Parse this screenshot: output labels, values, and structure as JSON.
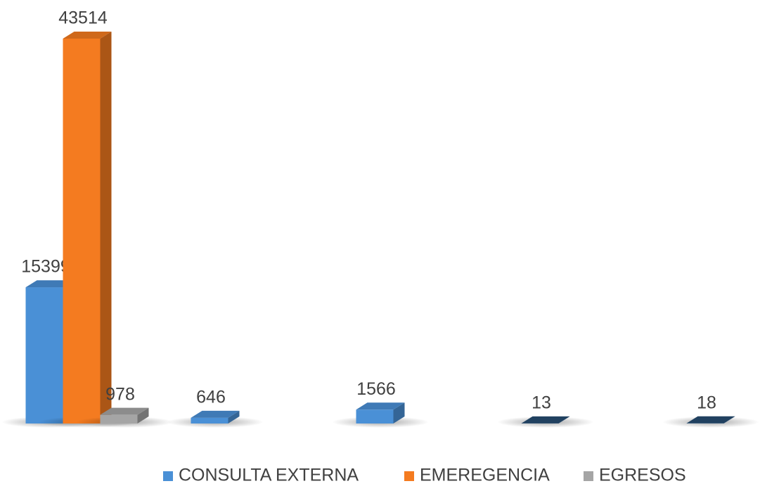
{
  "chart_data": {
    "type": "bar3d",
    "categories": [
      null,
      null,
      null,
      null,
      null
    ],
    "series": [
      {
        "name": "CONSULTA EXTERNA",
        "color": "#4a90d6",
        "values": [
          15399,
          646,
          1566,
          13,
          18
        ]
      },
      {
        "name": "EMEREGENCIA",
        "color": "#f47b20",
        "values": [
          43514,
          null,
          null,
          null,
          null
        ]
      },
      {
        "name": "EGRESOS",
        "color": "#a5a5a5",
        "values": [
          978,
          null,
          null,
          null,
          null
        ]
      }
    ],
    "legend": "bottom"
  }
}
